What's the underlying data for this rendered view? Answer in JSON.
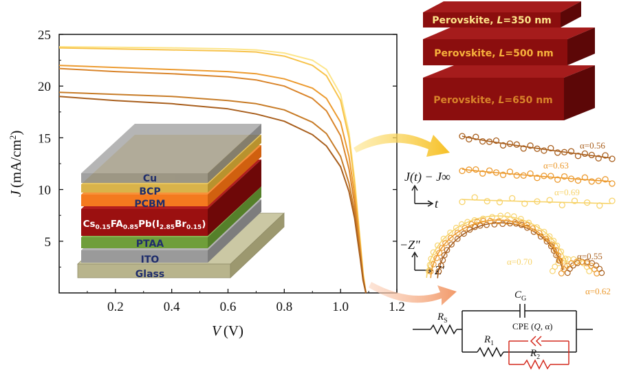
{
  "chart_data": {
    "type": "line",
    "xlabel_var": "V",
    "xlabel_unit": "(V)",
    "ylabel_var": "J",
    "ylabel_unit": "(mA/cm",
    "ylabel_sup": "2",
    "ylabel_close": ")",
    "xlim": [
      0,
      1.2
    ],
    "ylim": [
      0,
      25
    ],
    "xticks": [
      "0.2",
      "0.4",
      "0.6",
      "0.8",
      "1.0",
      "1.2"
    ],
    "yticks": [
      "5",
      "10",
      "15",
      "20",
      "25"
    ],
    "grid": false,
    "series": [
      {
        "color": "#fde58a",
        "x": [
          0,
          0.2,
          0.4,
          0.6,
          0.7,
          0.8,
          0.9,
          0.95,
          1.0,
          1.03,
          1.05,
          1.07,
          1.08,
          1.09
        ],
        "y": [
          23.8,
          23.75,
          23.7,
          23.6,
          23.5,
          23.2,
          22.5,
          21.6,
          19.2,
          15.5,
          11.0,
          5.0,
          2.0,
          0.0
        ]
      },
      {
        "color": "#f7c24a",
        "x": [
          0,
          0.2,
          0.4,
          0.6,
          0.7,
          0.8,
          0.9,
          0.95,
          1.0,
          1.03,
          1.05,
          1.07,
          1.08,
          1.09
        ],
        "y": [
          23.7,
          23.6,
          23.5,
          23.4,
          23.3,
          22.9,
          22.0,
          21.0,
          18.6,
          15.0,
          10.5,
          4.8,
          1.8,
          0.0
        ]
      },
      {
        "color": "#ec9a2e",
        "x": [
          0,
          0.2,
          0.4,
          0.6,
          0.7,
          0.8,
          0.9,
          0.95,
          1.0,
          1.03,
          1.05,
          1.07,
          1.08,
          1.09
        ],
        "y": [
          22.0,
          21.8,
          21.6,
          21.4,
          21.2,
          20.7,
          19.8,
          18.8,
          16.5,
          13.2,
          9.5,
          4.3,
          1.6,
          0.0
        ]
      },
      {
        "color": "#d9842a",
        "x": [
          0,
          0.2,
          0.4,
          0.6,
          0.7,
          0.8,
          0.9,
          0.95,
          1.0,
          1.03,
          1.05,
          1.07,
          1.08,
          1.09
        ],
        "y": [
          21.7,
          21.4,
          21.2,
          20.9,
          20.6,
          20.0,
          18.8,
          17.6,
          15.2,
          12.0,
          8.6,
          3.9,
          1.4,
          0.0
        ]
      },
      {
        "color": "#c77b26",
        "x": [
          0,
          0.2,
          0.4,
          0.6,
          0.7,
          0.8,
          0.9,
          0.95,
          1.0,
          1.03,
          1.05,
          1.07,
          1.08,
          1.09
        ],
        "y": [
          19.4,
          19.2,
          19.0,
          18.6,
          18.3,
          17.7,
          16.5,
          15.4,
          13.2,
          10.6,
          7.8,
          3.6,
          1.3,
          0.0
        ]
      },
      {
        "color": "#a85e1c",
        "x": [
          0,
          0.2,
          0.4,
          0.6,
          0.7,
          0.8,
          0.9,
          0.95,
          1.0,
          1.03,
          1.05,
          1.07,
          1.08,
          1.09
        ],
        "y": [
          19.0,
          18.6,
          18.3,
          17.8,
          17.3,
          16.6,
          15.3,
          14.2,
          12.2,
          9.8,
          7.2,
          3.3,
          1.2,
          0.0
        ]
      }
    ]
  },
  "stack": {
    "layers": [
      {
        "label": "Cu",
        "color": "#9a9a9a"
      },
      {
        "label": "BCP",
        "color": "#d9b34a"
      },
      {
        "label": "PCBM",
        "color": "#f47a1f"
      },
      {
        "label": "Cs0.15FA0.85Pb(I2.85Br0.15)",
        "color": "#9b1010"
      },
      {
        "label": "PTAA",
        "color": "#6f9e3a"
      },
      {
        "label": "ITO",
        "color": "#9a9a9a"
      },
      {
        "label": "Glass",
        "color": "#b8b48c"
      }
    ],
    "perovskite_label": {
      "p1": "Cs",
      "s1": "0.15",
      "p2": "FA",
      "s2": "0.85",
      "p3": "Pb(I",
      "s3": "2.85",
      "p4": "Br",
      "s4": "0.15",
      "p5": ")"
    }
  },
  "slabs": [
    {
      "prefix": "Perovskite, ",
      "var": "L",
      "value": "=350 nm",
      "text_color": "#fde58a"
    },
    {
      "prefix": "Perovskite, ",
      "var": "L",
      "value": "=500 nm",
      "text_color": "#f7b23c"
    },
    {
      "prefix": "Perovskite, ",
      "var": "L",
      "value": "=650 nm",
      "text_color": "#d9842a"
    }
  ],
  "transient": {
    "ylabel": "J(t) − J∞",
    "xlabel": "t",
    "alphas": [
      {
        "label": "α=0.56",
        "color": "#a85e1c"
      },
      {
        "label": "α=0.63",
        "color": "#ec9a2e"
      },
      {
        "label": "α=0.69",
        "color": "#f7d36a"
      }
    ]
  },
  "impedance": {
    "ylabel": "−Z\"",
    "xlabel": "Z'",
    "alphas": [
      {
        "label": "α=0.70",
        "color": "#f7d36a"
      },
      {
        "label": "α=0.55",
        "color": "#a85e1c"
      },
      {
        "label": "α=0.62",
        "color": "#ec9a2e"
      }
    ]
  },
  "circuit": {
    "rs": "R",
    "rs_sub": "S",
    "cg": "C",
    "cg_sub": "G",
    "r1": "R",
    "r1_sub": "1",
    "r2": "R",
    "r2_sub": "2",
    "cpe": "CPE (",
    "cpe_q": "Q",
    "cpe_end": ", α)",
    "line_color": "#111111",
    "cpe_color": "#d42a1e"
  },
  "colors": {
    "arrow_top": "#f6c026",
    "arrow_bottom": "#f29a6a",
    "slab_front": "#8b0e0e",
    "slab_top": "#a51c1c",
    "slab_side": "#5c0707"
  }
}
